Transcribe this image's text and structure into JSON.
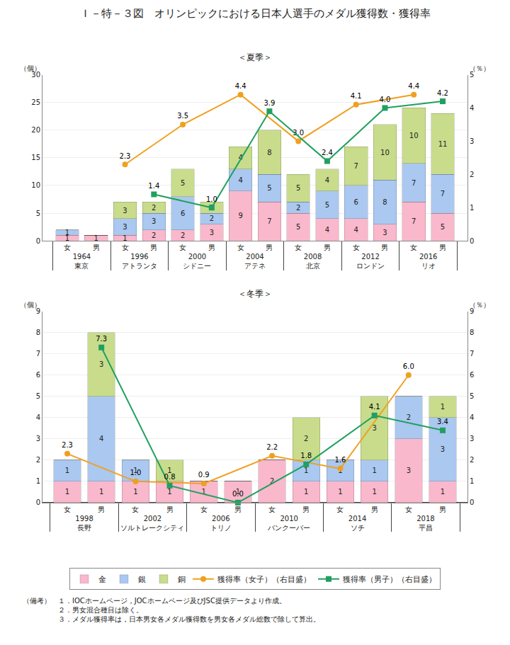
{
  "title": "Ｉ－特－３図　オリンピックにおける日本人選手のメダル獲得数・獲得率",
  "annotations": [
    "（備考）　１．IOCホームページ，JOCホームページ及びJSC提供データより作成。",
    "　　　　　２．男女混合種目は除く。",
    "　　　　　３．メダル獲得率は，日本男女各メダル獲得数を男女各メダル総数で除して算出。"
  ],
  "chart_data": [
    {
      "type": "bar",
      "title": "＜夏季＞",
      "stacked": true,
      "grid": true,
      "data_labels": true,
      "legend": "bottom",
      "categories": [
        [
          "1964\n東京",
          "女"
        ],
        [
          "1964\n東京",
          "男"
        ],
        [
          "1996\nアトランタ",
          "女"
        ],
        [
          "1996\nアトランタ",
          "男"
        ],
        [
          "2000\nシドニー",
          "女"
        ],
        [
          "2000\nシドニー",
          "男"
        ],
        [
          "2004\nアテネ",
          "女"
        ],
        [
          "2004\nアテネ",
          "男"
        ],
        [
          "2008\n北京",
          "女"
        ],
        [
          "2008\n北京",
          "男"
        ],
        [
          "2012\nロンドン",
          "女"
        ],
        [
          "2012\nロンドン",
          "男"
        ],
        [
          "2016\nリオ",
          "女"
        ],
        [
          "2016\nリオ",
          "男"
        ]
      ],
      "ylabel": "（個）",
      "y2label": "（％）",
      "ylim": [
        0,
        30
      ],
      "yticks": [
        0,
        5,
        10,
        15,
        20,
        25,
        30
      ],
      "y2lim": [
        0,
        5
      ],
      "y2ticks": [
        0,
        1,
        2,
        3,
        4,
        5
      ],
      "series": [
        {
          "name": "金",
          "color": "#f9b8cc",
          "values": [
            1,
            1,
            1,
            2,
            2,
            3,
            9,
            7,
            5,
            4,
            4,
            3,
            7,
            5
          ]
        },
        {
          "name": "銀",
          "color": "#aac8f0",
          "values": [
            1,
            0,
            3,
            3,
            6,
            2,
            4,
            5,
            2,
            5,
            6,
            8,
            7,
            7
          ]
        },
        {
          "name": "銅",
          "color": "#c8dc8c",
          "values": [
            0,
            0,
            3,
            2,
            5,
            2,
            4,
            8,
            5,
            4,
            7,
            10,
            10,
            11
          ]
        },
        {
          "name": "獲得率（女子）（右目盛）",
          "type": "line",
          "axis": "y2",
          "color": "#f0a020",
          "marker": "circle",
          "values": [
            null,
            null,
            2.3,
            null,
            3.5,
            null,
            4.4,
            null,
            3.0,
            null,
            4.1,
            null,
            4.4,
            null
          ],
          "value_labels": [
            null,
            null,
            "2.3",
            null,
            "3.5",
            null,
            "4.4",
            null,
            "3.0",
            null,
            "4.1",
            null,
            "4.4",
            null
          ]
        },
        {
          "name": "獲得率（男子）（右目盛）",
          "type": "line",
          "axis": "y2",
          "color": "#20a060",
          "marker": "square",
          "values": [
            null,
            null,
            null,
            1.4,
            null,
            1.0,
            null,
            3.9,
            null,
            2.4,
            null,
            4.0,
            null,
            4.2
          ],
          "value_labels": [
            null,
            null,
            null,
            "1.4",
            null,
            "1.0",
            null,
            "3.9",
            null,
            "2.4",
            null,
            "4.0",
            null,
            "4.2"
          ]
        }
      ]
    },
    {
      "type": "bar",
      "title": "＜冬季＞",
      "stacked": true,
      "grid": true,
      "data_labels": true,
      "categories": [
        [
          "1998\n長野",
          "女"
        ],
        [
          "1998\n長野",
          "男"
        ],
        [
          "2002\nソルトレークシティ",
          "女"
        ],
        [
          "2002\nソルトレークシティ",
          "男"
        ],
        [
          "2006\nトリノ",
          "女"
        ],
        [
          "2006\nトリノ",
          "男"
        ],
        [
          "2010\nバンクーバー",
          "女"
        ],
        [
          "2010\nバンクーバー",
          "男"
        ],
        [
          "2014\nソチ",
          "女"
        ],
        [
          "2014\nソチ",
          "男"
        ],
        [
          "2018\n平昌",
          "女"
        ],
        [
          "2018\n平昌",
          "男"
        ]
      ],
      "ylabel": "（個）",
      "y2label": "（％）",
      "ylim": [
        0,
        9
      ],
      "yticks": [
        0,
        1,
        2,
        3,
        4,
        5,
        6,
        7,
        8,
        9
      ],
      "y2lim": [
        0,
        9
      ],
      "y2ticks": [
        0,
        1,
        2,
        3,
        4,
        5,
        6,
        7,
        8,
        9
      ],
      "series": [
        {
          "name": "金",
          "color": "#f9b8cc",
          "values": [
            1,
            1,
            1,
            1,
            1,
            1,
            2,
            1,
            1,
            1,
            3,
            1
          ]
        },
        {
          "name": "銀",
          "color": "#aac8f0",
          "values": [
            1,
            4,
            1,
            0,
            0,
            0,
            0,
            1,
            1,
            1,
            2,
            3
          ]
        },
        {
          "name": "銅",
          "color": "#c8dc8c",
          "values": [
            0,
            3,
            0,
            1,
            0,
            0,
            0,
            2,
            0,
            3,
            0,
            1
          ]
        },
        {
          "name": "獲得率（女子）（右目盛）",
          "type": "line",
          "axis": "y2",
          "color": "#f0a020",
          "marker": "circle",
          "values": [
            2.3,
            null,
            1.0,
            null,
            0.9,
            null,
            2.2,
            null,
            1.6,
            null,
            6.0,
            null
          ],
          "value_labels": [
            "2.3",
            null,
            "1.0",
            null,
            "0.9",
            null,
            "2.2",
            null,
            "1.6",
            null,
            "6.0",
            null
          ]
        },
        {
          "name": "獲得率（男子）（右目盛）",
          "type": "line",
          "axis": "y2",
          "color": "#20a060",
          "marker": "square",
          "values": [
            null,
            7.3,
            null,
            0.8,
            null,
            0.0,
            null,
            1.8,
            null,
            4.1,
            null,
            3.4
          ],
          "value_labels": [
            null,
            "7.3",
            null,
            "0.8",
            null,
            "0.0",
            null,
            "1.8",
            null,
            "4.1",
            null,
            "3.4"
          ]
        }
      ]
    }
  ]
}
